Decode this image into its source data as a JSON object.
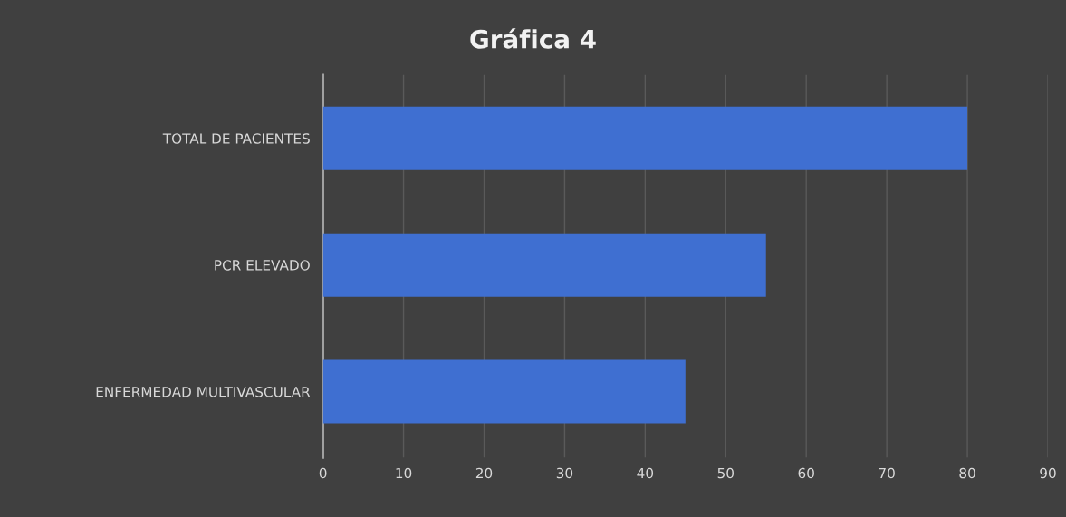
{
  "chart_data": {
    "type": "bar",
    "orientation": "horizontal",
    "title": "Gráfica 4",
    "categories": [
      "TOTAL DE PACIENTES",
      "PCR ELEVADO",
      "ENFERMEDAD MULTIVASCULAR"
    ],
    "values": [
      80,
      55,
      45
    ],
    "color": "#3f6fd1",
    "xlim": [
      0,
      90
    ],
    "xticks": [
      0,
      10,
      20,
      30,
      40,
      50,
      60,
      70,
      80,
      90
    ],
    "grid": "x",
    "legend": false
  }
}
